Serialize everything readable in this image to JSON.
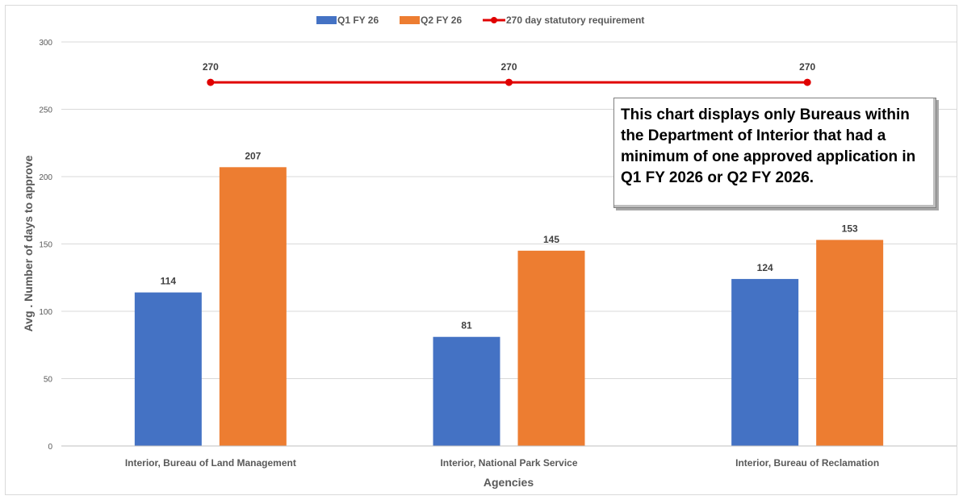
{
  "chart_data": {
    "type": "bar",
    "categories": [
      "Interior, Bureau of Land Management",
      "Interior, National Park Service",
      "Interior, Bureau of Reclamation"
    ],
    "series": [
      {
        "name": "Q1 FY 26",
        "type": "bar",
        "color": "#4472C4",
        "values": [
          114,
          81,
          124
        ]
      },
      {
        "name": "Q2 FY 26",
        "type": "bar",
        "color": "#ED7D31",
        "values": [
          207,
          145,
          153
        ]
      },
      {
        "name": "270 day statutory requirement",
        "type": "line",
        "color": "#E00000",
        "values": [
          270,
          270,
          270
        ]
      }
    ],
    "xlabel": "Agencies",
    "ylabel": "Avg . Number of days to approve",
    "ylim": [
      0,
      300
    ],
    "yticks": [
      0,
      50,
      100,
      150,
      200,
      250,
      300
    ],
    "grid": true,
    "legend_position": "top",
    "annotation": "This chart displays only Bureaus within the Department of Interior that had a minimum of one approved application in Q1 FY 2026 or Q2 FY 2026."
  }
}
